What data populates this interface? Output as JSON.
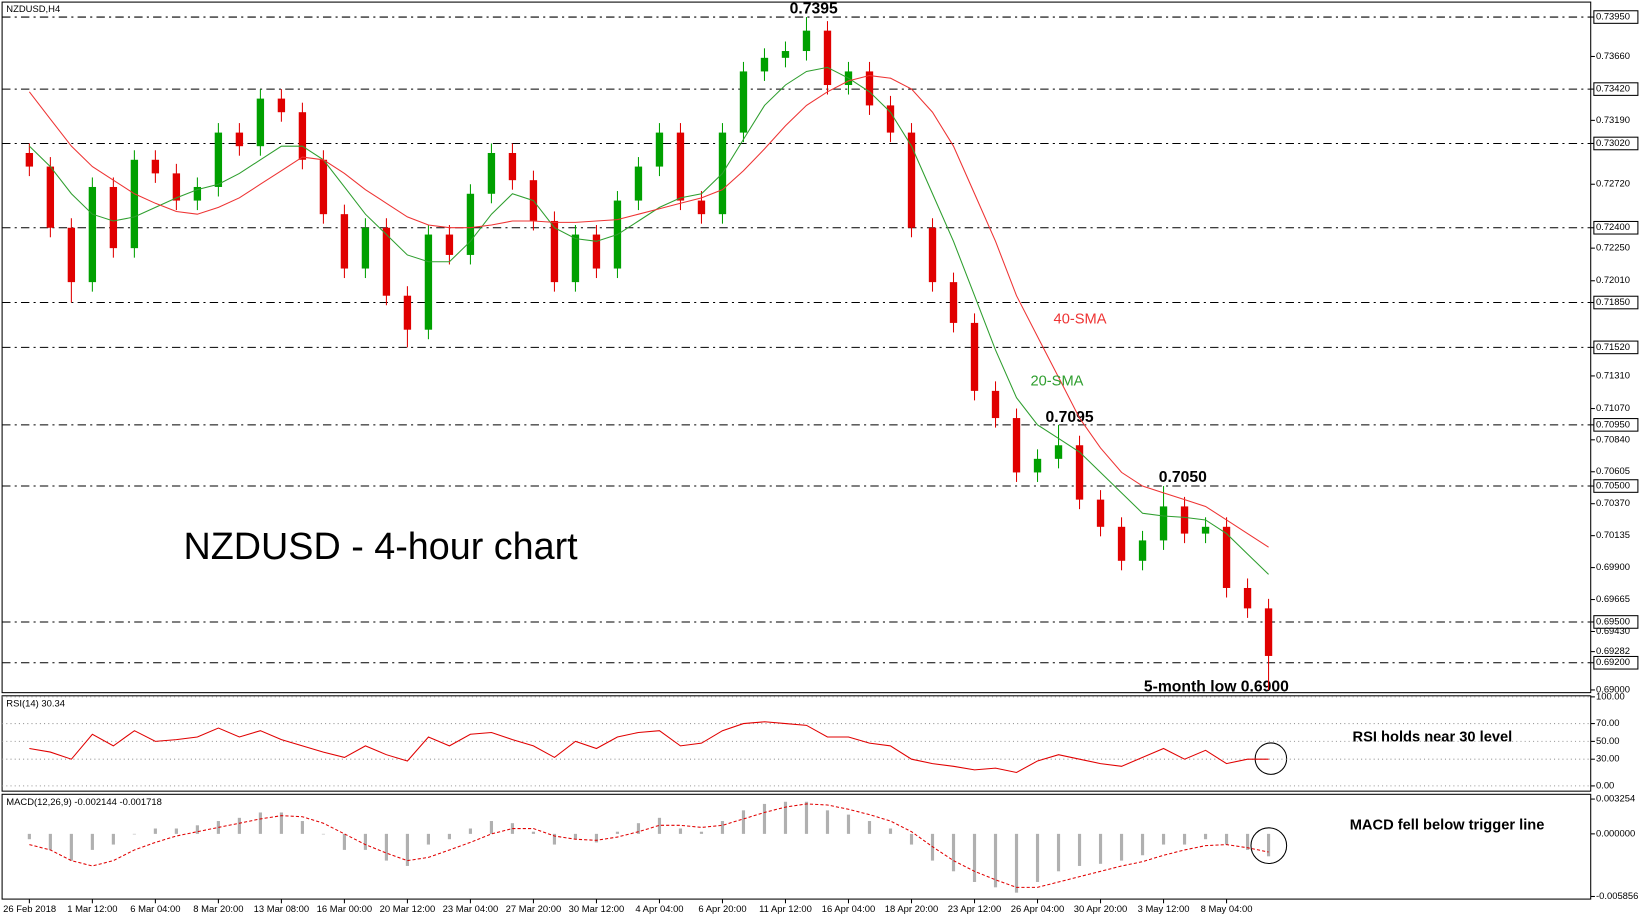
{
  "chart_data": [
    {
      "type": "candlestick",
      "title": "NZDUSD,H4",
      "caption": "NZDUSD - 4-hour chart",
      "categories": [
        "26 Feb 2018",
        null,
        null,
        "1 Mar 12:00",
        null,
        null,
        "6 Mar 04:00",
        null,
        null,
        "8 Mar 20:00",
        null,
        null,
        "13 Mar 08:00",
        null,
        null,
        "16 Mar 00:00",
        null,
        null,
        "20 Mar 12:00",
        null,
        null,
        "23 Mar 04:00",
        null,
        null,
        "27 Mar 20:00",
        null,
        null,
        "30 Mar 12:00",
        null,
        null,
        "4 Apr 04:00",
        null,
        null,
        "6 Apr 20:00",
        null,
        null,
        "11 Apr 12:00",
        null,
        null,
        "16 Apr 04:00",
        null,
        null,
        "18 Apr 20:00",
        null,
        null,
        "23 Apr 12:00",
        null,
        null,
        "26 Apr 04:00",
        null,
        null,
        "30 Apr 20:00",
        null,
        null,
        "3 May 12:00",
        null,
        null,
        "8 May 04:00",
        null,
        null
      ],
      "open": [
        0.7295,
        0.7285,
        0.724,
        0.72,
        0.727,
        0.7225,
        0.729,
        0.728,
        0.726,
        0.727,
        0.731,
        0.73,
        0.7335,
        0.7325,
        0.729,
        0.725,
        0.721,
        0.724,
        0.719,
        0.7165,
        0.7235,
        0.722,
        0.7265,
        0.7295,
        0.7275,
        0.7245,
        0.72,
        0.7235,
        0.721,
        0.726,
        0.7285,
        0.731,
        0.726,
        0.725,
        0.731,
        0.7355,
        0.7365,
        0.737,
        0.7385,
        0.7345,
        0.7355,
        0.733,
        0.731,
        0.724,
        0.72,
        0.717,
        0.712,
        0.71,
        0.706,
        0.707,
        0.708,
        0.704,
        0.702,
        0.6995,
        0.701,
        0.7035,
        0.7015,
        0.702,
        0.6975,
        0.696
      ],
      "high": [
        0.7302,
        0.7292,
        0.7247,
        0.7277,
        0.7277,
        0.7297,
        0.7297,
        0.7287,
        0.7277,
        0.7317,
        0.7317,
        0.7342,
        0.7342,
        0.7332,
        0.7297,
        0.7257,
        0.7247,
        0.7247,
        0.7197,
        0.7242,
        0.7242,
        0.7272,
        0.7302,
        0.7302,
        0.7282,
        0.7252,
        0.7242,
        0.7242,
        0.7267,
        0.7292,
        0.7317,
        0.7317,
        0.7267,
        0.7317,
        0.7362,
        0.7372,
        0.7377,
        0.7395,
        0.7392,
        0.7362,
        0.7362,
        0.7337,
        0.7317,
        0.7247,
        0.7207,
        0.7177,
        0.7127,
        0.7107,
        0.7077,
        0.7095,
        0.7087,
        0.7047,
        0.7027,
        0.7017,
        0.705,
        0.7042,
        0.7027,
        0.7027,
        0.6982,
        0.6967
      ],
      "low": [
        0.7278,
        0.7233,
        0.7185,
        0.7193,
        0.7218,
        0.7218,
        0.7273,
        0.7253,
        0.7253,
        0.7263,
        0.7293,
        0.7293,
        0.7318,
        0.7283,
        0.7243,
        0.7203,
        0.7203,
        0.7183,
        0.7152,
        0.7158,
        0.7213,
        0.7213,
        0.7258,
        0.7268,
        0.7238,
        0.7193,
        0.7193,
        0.7203,
        0.7203,
        0.7253,
        0.7278,
        0.7253,
        0.7243,
        0.7243,
        0.7303,
        0.7348,
        0.7358,
        0.7363,
        0.7338,
        0.7338,
        0.7323,
        0.7303,
        0.7233,
        0.7193,
        0.7163,
        0.7113,
        0.7093,
        0.7053,
        0.7053,
        0.7063,
        0.7033,
        0.7013,
        0.6988,
        0.6988,
        0.7003,
        0.7008,
        0.7008,
        0.6968,
        0.6953,
        0.69
      ],
      "close": [
        0.7285,
        0.724,
        0.72,
        0.727,
        0.7225,
        0.729,
        0.728,
        0.726,
        0.727,
        0.731,
        0.73,
        0.7335,
        0.7325,
        0.729,
        0.725,
        0.721,
        0.724,
        0.719,
        0.7165,
        0.7235,
        0.722,
        0.7265,
        0.7295,
        0.7275,
        0.7245,
        0.72,
        0.7235,
        0.721,
        0.726,
        0.7285,
        0.731,
        0.726,
        0.725,
        0.731,
        0.7355,
        0.7365,
        0.737,
        0.7385,
        0.7345,
        0.7355,
        0.733,
        0.731,
        0.724,
        0.72,
        0.717,
        0.712,
        0.71,
        0.706,
        0.707,
        0.708,
        0.704,
        0.702,
        0.6995,
        0.701,
        0.7035,
        0.7015,
        0.702,
        0.6975,
        0.696,
        0.6925
      ],
      "up_color": "#00a000",
      "down_color": "#e00000",
      "series": [
        {
          "name": "20-SMA",
          "color": "#2e9e2e",
          "values": [
            0.73,
            0.7285,
            0.7265,
            0.725,
            0.7245,
            0.7248,
            0.7255,
            0.7262,
            0.7268,
            0.7272,
            0.728,
            0.729,
            0.73,
            0.73,
            0.729,
            0.727,
            0.725,
            0.7235,
            0.722,
            0.7215,
            0.7215,
            0.723,
            0.725,
            0.7265,
            0.726,
            0.724,
            0.7232,
            0.723,
            0.7235,
            0.7245,
            0.7255,
            0.7262,
            0.7265,
            0.728,
            0.7305,
            0.733,
            0.7345,
            0.7355,
            0.7358,
            0.735,
            0.734,
            0.7325,
            0.73,
            0.7265,
            0.723,
            0.719,
            0.715,
            0.7115,
            0.7095,
            0.7085,
            0.7075,
            0.706,
            0.7045,
            0.703,
            0.7028,
            0.7027,
            0.7025,
            0.7015,
            0.7,
            0.6985
          ]
        },
        {
          "name": "40-SMA",
          "color": "#ee3333",
          "values": [
            0.734,
            0.732,
            0.73,
            0.7285,
            0.7275,
            0.7265,
            0.7258,
            0.7252,
            0.725,
            0.7255,
            0.7262,
            0.7272,
            0.7282,
            0.7292,
            0.729,
            0.728,
            0.7268,
            0.7258,
            0.7248,
            0.7242,
            0.724,
            0.724,
            0.7242,
            0.7245,
            0.7245,
            0.7244,
            0.7244,
            0.7245,
            0.7246,
            0.725,
            0.7254,
            0.7258,
            0.7262,
            0.7268,
            0.7282,
            0.7298,
            0.7315,
            0.733,
            0.734,
            0.7348,
            0.7352,
            0.735,
            0.7342,
            0.7325,
            0.73,
            0.7265,
            0.723,
            0.719,
            0.716,
            0.713,
            0.71,
            0.7078,
            0.706,
            0.705,
            0.7045,
            0.704,
            0.7035,
            0.7025,
            0.7015,
            0.7005
          ]
        }
      ],
      "ylim": [
        0.6898,
        0.7406
      ],
      "yticks": [
        {
          "value": 0.7395,
          "label": "0.73950"
        },
        {
          "value": 0.7366,
          "label": "0.73660"
        },
        {
          "value": 0.7342,
          "label": "0.73420"
        },
        {
          "value": 0.7319,
          "label": "0.73190"
        },
        {
          "value": 0.7302,
          "label": "0.73020"
        },
        {
          "value": 0.7272,
          "label": "0.72720"
        },
        {
          "value": 0.724,
          "label": "0.72400"
        },
        {
          "value": 0.7225,
          "label": "0.72250"
        },
        {
          "value": 0.7201,
          "label": "0.72010"
        },
        {
          "value": 0.7185,
          "label": "0.71850"
        },
        {
          "value": 0.7152,
          "label": "0.71520"
        },
        {
          "value": 0.7131,
          "label": "0.71310"
        },
        {
          "value": 0.7107,
          "label": "0.71070"
        },
        {
          "value": 0.7095,
          "label": "0.70950"
        },
        {
          "value": 0.7084,
          "label": "0.70840"
        },
        {
          "value": 0.70605,
          "label": "0.70605"
        },
        {
          "value": 0.705,
          "label": "0.70500"
        },
        {
          "value": 0.7037,
          "label": "0.70370"
        },
        {
          "value": 0.70135,
          "label": "0.70135"
        },
        {
          "value": 0.699,
          "label": "0.69900"
        },
        {
          "value": 0.69665,
          "label": "0.69665"
        },
        {
          "value": 0.695,
          "label": "0.69500"
        },
        {
          "value": 0.6943,
          "label": "0.69430"
        },
        {
          "value": 0.69282,
          "label": "0.69282"
        },
        {
          "value": 0.692,
          "label": "0.69200"
        },
        {
          "value": 0.69,
          "label": "0.69000"
        }
      ],
      "levels": [
        0.7395,
        0.7342,
        0.7302,
        0.724,
        0.7185,
        0.7152,
        0.7095,
        0.705,
        0.695,
        0.692
      ],
      "annotations": {
        "high": "0.7395",
        "swing_1": "0.7095",
        "swing_2": "0.7050",
        "low": "5-month low 0.6900"
      }
    },
    {
      "type": "line",
      "title": "RSI(14) 30.34",
      "note": "RSI holds near 30 level",
      "color": "#e00000",
      "values": [
        42,
        38,
        30,
        58,
        45,
        62,
        50,
        52,
        55,
        65,
        55,
        62,
        52,
        45,
        38,
        32,
        45,
        35,
        28,
        55,
        45,
        58,
        60,
        52,
        45,
        32,
        50,
        42,
        55,
        60,
        62,
        45,
        48,
        62,
        70,
        72,
        70,
        68,
        55,
        55,
        48,
        45,
        30,
        25,
        22,
        18,
        20,
        15,
        28,
        35,
        30,
        25,
        22,
        32,
        42,
        30,
        40,
        25,
        30,
        30
      ],
      "ylim": [
        -5.9,
        101.2
      ],
      "yticks": [
        {
          "value": 100,
          "label": "100.00"
        },
        {
          "value": 70,
          "label": "70.00"
        },
        {
          "value": 50,
          "label": "50.00"
        },
        {
          "value": 30,
          "label": "30.00"
        },
        {
          "value": 0,
          "label": "0.00"
        }
      ],
      "grid": true
    },
    {
      "type": "macd",
      "title": "MACD(12,26,9) -0.002144 -0.001718",
      "note": "MACD fell below trigger line",
      "series": [
        {
          "color": "#b0b0b0",
          "values": [
            -0.0005,
            -0.0015,
            -0.0025,
            -0.0015,
            -0.001,
            0.0,
            0.0005,
            0.0005,
            0.0008,
            0.0012,
            0.0015,
            0.002,
            0.002,
            0.0012,
            0.0,
            -0.0015,
            -0.0015,
            -0.0025,
            -0.003,
            -0.001,
            -0.0005,
            0.0005,
            0.0012,
            0.001,
            0.0002,
            -0.001,
            -0.0005,
            -0.0008,
            0.0002,
            0.001,
            0.0015,
            0.0005,
            0.0002,
            0.0012,
            0.0022,
            0.0028,
            0.003,
            0.003,
            0.0022,
            0.0018,
            0.0012,
            0.0005,
            -0.001,
            -0.0025,
            -0.0035,
            -0.0045,
            -0.005,
            -0.0055,
            -0.0045,
            -0.0035,
            -0.003,
            -0.0028,
            -0.0025,
            -0.002,
            -0.001,
            -0.001,
            -0.0005,
            -0.001,
            -0.0015,
            -0.0021
          ]
        },
        {
          "color": "#e00000",
          "values": [
            -0.001,
            -0.0015,
            -0.0025,
            -0.003,
            -0.0025,
            -0.0015,
            -0.0008,
            -0.0002,
            0.0002,
            0.0006,
            0.001,
            0.0014,
            0.0017,
            0.0016,
            0.001,
            0.0,
            -0.001,
            -0.0018,
            -0.0025,
            -0.0022,
            -0.0015,
            -0.0008,
            0.0,
            0.0005,
            0.0005,
            -0.0002,
            -0.0005,
            -0.0006,
            -0.0003,
            0.0002,
            0.0008,
            0.0008,
            0.0006,
            0.0008,
            0.0014,
            0.002,
            0.0025,
            0.0028,
            0.0027,
            0.0023,
            0.0018,
            0.0012,
            0.0002,
            -0.0012,
            -0.0025,
            -0.0035,
            -0.0043,
            -0.005,
            -0.005,
            -0.0045,
            -0.004,
            -0.0035,
            -0.003,
            -0.0026,
            -0.002,
            -0.0015,
            -0.0011,
            -0.001,
            -0.0013,
            -0.0017
          ]
        }
      ],
      "ylim": [
        -0.0061,
        0.0037
      ],
      "yticks": [
        0.003254,
        {
          "value": 0,
          "label": "0.000000"
        },
        -0.005856
      ]
    }
  ]
}
